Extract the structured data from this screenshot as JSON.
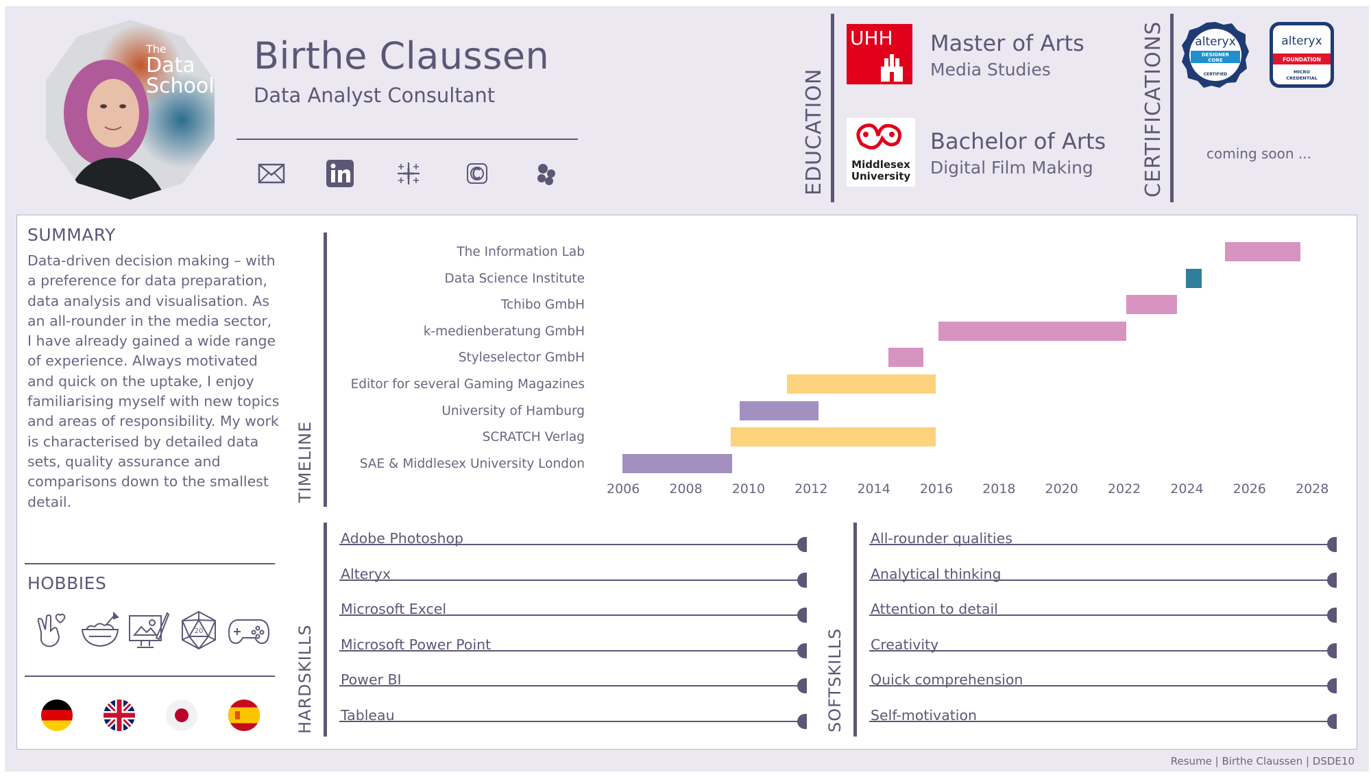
{
  "header": {
    "name": "Birthe Claussen",
    "role": "Data Analyst Consultant",
    "photo_watermark": [
      "The",
      "Data",
      "School"
    ],
    "contact_icons": [
      "mail-icon",
      "linkedin-icon",
      "tableau-public-icon",
      "credly-icon",
      "portfolio-icon"
    ]
  },
  "education": {
    "title": "EDUCATION",
    "items": [
      {
        "degree": "Master of Arts",
        "subject": "Media Studies",
        "logo": "uhh-logo",
        "logo_text": "UHH"
      },
      {
        "degree": "Bachelor of Arts",
        "subject": "Digital Film Making",
        "logo": "middlesex-logo",
        "logo_text": [
          "Middlesex",
          "University"
        ]
      }
    ]
  },
  "certifications": {
    "title": "CERTIFICATIONS",
    "badges": [
      {
        "name": "alteryx-designer-core-badge",
        "brand": "alteryx",
        "lines": [
          "DESIGNER",
          "CORE"
        ],
        "ribbon": "CERTIFIED"
      },
      {
        "name": "alteryx-foundation-badge",
        "brand": "alteryx",
        "ribbon": "FOUNDATION",
        "lines": [
          "MICRO",
          "CREDENTIAL"
        ]
      }
    ],
    "note": "coming soon ..."
  },
  "summary": {
    "title": "SUMMARY",
    "text": "Data-driven decision making – with a preference for data preparation, data analysis and visualisation. As an all-rounder in the media sector, I have already gained a wide range of experience. Always motivated and quick on the uptake, I enjoy familiarising myself with new topics and areas of responsibility. My work is characterised by detailed data sets, quality assurance and comparisons down to the smallest detail."
  },
  "hobbies": {
    "title": "HOBBIES",
    "icons": [
      "metal-hand-heart-icon",
      "baking-icon",
      "painting-icon",
      "d20-dice-icon",
      "gamepad-icon"
    ]
  },
  "languages": {
    "flags": [
      "germany-flag",
      "uk-flag",
      "japan-flag",
      "spain-flag"
    ]
  },
  "timeline": {
    "title": "TIMELINE",
    "colors": {
      "education": "#a390c0",
      "freelance": "#fcd27c",
      "employment": "#d894c0",
      "training": "#2e7f9c"
    }
  },
  "chart_data": {
    "type": "bar",
    "orientation": "gantt",
    "xlim": [
      2006,
      2028
    ],
    "xticks": [
      "2006",
      "2008",
      "2010",
      "2012",
      "2014",
      "2016",
      "2018",
      "2020",
      "2022",
      "2024",
      "2026",
      "2028"
    ],
    "rows": [
      {
        "label": "The Information Lab",
        "start": 2025.25,
        "end": 2027.65,
        "color": "#d894c0"
      },
      {
        "label": "Data Science Institute",
        "start": 2024.0,
        "end": 2024.5,
        "color": "#2e7f9c"
      },
      {
        "label": "Tchibo GmbH",
        "start": 2022.1,
        "end": 2023.7,
        "color": "#d894c0"
      },
      {
        "label": "k-medienberatung GmbH",
        "start": 2016.1,
        "end": 2022.1,
        "color": "#d894c0"
      },
      {
        "label": "Styleselector GmbH",
        "start": 2014.5,
        "end": 2015.6,
        "color": "#d894c0"
      },
      {
        "label": "Editor for several Gaming Magazines",
        "start": 2011.25,
        "end": 2016.0,
        "color": "#fcd27c"
      },
      {
        "label": "University of Hamburg",
        "start": 2009.75,
        "end": 2012.25,
        "color": "#a390c0"
      },
      {
        "label": "SCRATCH Verlag",
        "start": 2009.45,
        "end": 2016.0,
        "color": "#fcd27c"
      },
      {
        "label": "SAE & Middlesex University London",
        "start": 2006.0,
        "end": 2009.5,
        "color": "#a390c0"
      }
    ]
  },
  "hardskills": {
    "title": "HARDSKILLS",
    "items": [
      "Adobe Photoshop",
      "Alteryx",
      "Microsoft Excel",
      "Microsoft Power Point",
      "Power BI",
      "Tableau"
    ]
  },
  "softskills": {
    "title": "SOFTSKILLS",
    "items": [
      "All-rounder qualities",
      "Analytical thinking",
      "Attention to detail",
      "Creativity",
      "Quick comprehension",
      "Self-motivation"
    ]
  },
  "footer": {
    "text": "Resume | Birthe Claussen | DSDE10"
  }
}
